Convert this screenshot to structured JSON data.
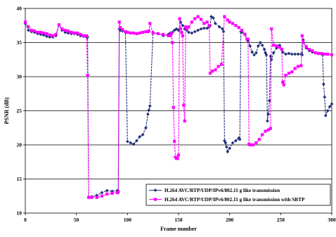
{
  "chart_data": {
    "type": "line",
    "title": "",
    "xlabel": "Frame number",
    "ylabel": "PSNR (dB)",
    "xlim": [
      0,
      300
    ],
    "ylim": [
      10,
      40
    ],
    "xticks": [
      0,
      50,
      100,
      150,
      200,
      250,
      300
    ],
    "yticks": [
      10,
      15,
      20,
      25,
      30,
      35,
      40
    ],
    "xtick_labels": [
      "0",
      "50",
      "100",
      "150",
      "200",
      "250",
      "300"
    ],
    "ytick_labels": [
      "10",
      "15",
      "20",
      "25",
      "30",
      "35",
      "40"
    ],
    "grid": "horizontal",
    "legend_position": "bottom-right",
    "series": [
      {
        "name": "H.264 AVC/RTP/UDP/IPv6/802.11 g like transmission",
        "color": "#1f2f7a",
        "marker": "diamond",
        "x": [
          0,
          3,
          6,
          9,
          12,
          15,
          18,
          21,
          24,
          27,
          30,
          33,
          36,
          39,
          42,
          45,
          48,
          51,
          54,
          57,
          60,
          61,
          62,
          65,
          70,
          75,
          80,
          85,
          90,
          91,
          92,
          93,
          95,
          98,
          100,
          103,
          106,
          109,
          112,
          115,
          118,
          120,
          121,
          122,
          125,
          130,
          135,
          140,
          142,
          144,
          146,
          148,
          150,
          152,
          154,
          156,
          158,
          160,
          163,
          166,
          169,
          172,
          175,
          178,
          180,
          181,
          182,
          184,
          186,
          190,
          193,
          194,
          195,
          196,
          197,
          198,
          200,
          203,
          206,
          209,
          210,
          211,
          212,
          215,
          218,
          220,
          222,
          224,
          226,
          228,
          230,
          232,
          234,
          235,
          236,
          237,
          238,
          239,
          240,
          241,
          243,
          246,
          249,
          252,
          255,
          258,
          261,
          264,
          267,
          270,
          271,
          272,
          275,
          278,
          281,
          284,
          287,
          290,
          291,
          292,
          293,
          294,
          296,
          298,
          300
        ],
        "y": [
          37.8,
          36.8,
          36.6,
          36.5,
          36.3,
          36.2,
          36.1,
          35.9,
          35.8,
          35.8,
          36.0,
          37.6,
          36.8,
          36.5,
          36.4,
          36.3,
          36.3,
          36.2,
          36.0,
          35.9,
          35.8,
          35.8,
          12.4,
          12.4,
          12.6,
          13.0,
          13.3,
          13.2,
          13.3,
          13.2,
          37.0,
          36.8,
          36.7,
          36.5,
          20.5,
          20.3,
          20.1,
          20.6,
          21.2,
          21.5,
          22.5,
          24.5,
          25.1,
          25.7,
          36.5,
          36.3,
          36.0,
          36.2,
          36.4,
          36.5,
          36.8,
          37.0,
          36.8,
          38.0,
          37.5,
          37.0,
          36.8,
          36.5,
          36.4,
          36.6,
          36.8,
          37.0,
          37.1,
          37.1,
          37.3,
          37.5,
          38.8,
          38.6,
          37.8,
          37.3,
          37.0,
          36.6,
          20.6,
          20.3,
          19.7,
          19.0,
          19.5,
          20.3,
          20.6,
          21.0,
          20.8,
          36.6,
          36.5,
          36.2,
          35.2,
          34.5,
          33.6,
          33.2,
          33.5,
          34.5,
          35.0,
          34.6,
          34.0,
          33.5,
          33.2,
          23.5,
          24.5,
          26.5,
          33.0,
          32.5,
          33.5,
          34.2,
          34.6,
          33.6,
          33.3,
          33.4,
          33.3,
          33.3,
          33.3,
          33.3,
          33.2,
          35.4,
          34.2,
          33.8,
          33.6,
          33.5,
          33.4,
          33.3,
          33.3,
          28.9,
          27.0,
          24.3,
          25.0,
          25.6,
          26.0
        ]
      },
      {
        "name": "H.264 AVC/RTP/UDP/IPv6/802.11 g like transmission with SRTP",
        "color": "#ff00ff",
        "marker": "square",
        "x": [
          0,
          3,
          6,
          9,
          12,
          15,
          18,
          21,
          24,
          27,
          30,
          33,
          36,
          39,
          42,
          45,
          48,
          51,
          54,
          57,
          60,
          61,
          62,
          65,
          70,
          75,
          80,
          85,
          90,
          91,
          92,
          93,
          95,
          98,
          100,
          103,
          106,
          109,
          112,
          115,
          118,
          120,
          121,
          122,
          125,
          130,
          135,
          140,
          142,
          143,
          144,
          145,
          146,
          147,
          148,
          149,
          150,
          151,
          152,
          153,
          154,
          155,
          156,
          157,
          158,
          160,
          163,
          166,
          169,
          172,
          175,
          178,
          180,
          181,
          183,
          186,
          189,
          192,
          195,
          198,
          200,
          203,
          206,
          209,
          212,
          215,
          217,
          218,
          219,
          220,
          223,
          226,
          229,
          232,
          235,
          238,
          240,
          241,
          243,
          246,
          249,
          251,
          252,
          253,
          255,
          258,
          261,
          264,
          267,
          270,
          271,
          272,
          275,
          278,
          281,
          284,
          287,
          290,
          293,
          296,
          300
        ],
        "y": [
          38.0,
          37.3,
          36.8,
          36.7,
          36.5,
          36.5,
          36.4,
          36.3,
          36.1,
          36.0,
          36.2,
          37.6,
          37.0,
          36.8,
          36.7,
          36.5,
          36.4,
          36.4,
          36.2,
          36.0,
          36.0,
          30.2,
          12.3,
          12.3,
          12.3,
          12.5,
          12.8,
          12.9,
          13.0,
          13.1,
          38.0,
          37.2,
          36.9,
          36.6,
          36.5,
          36.4,
          36.4,
          36.3,
          36.4,
          36.5,
          36.6,
          36.6,
          36.7,
          37.8,
          36.4,
          36.3,
          36.2,
          36.0,
          36.0,
          36.3,
          35.0,
          25.5,
          20.5,
          18.2,
          18.0,
          18.0,
          18.5,
          38.5,
          37.0,
          36.5,
          36.0,
          25.8,
          23.5,
          37.3,
          37.0,
          37.3,
          38.0,
          38.5,
          38.8,
          38.4,
          37.8,
          38.0,
          37.5,
          30.5,
          30.8,
          31.0,
          31.5,
          31.8,
          38.8,
          38.3,
          38.0,
          37.8,
          37.5,
          37.2,
          36.8,
          36.2,
          35.5,
          35.5,
          20.1,
          20.0,
          20.0,
          20.3,
          20.8,
          21.5,
          22.0,
          22.2,
          22.4,
          37.0,
          34.6,
          34.5,
          34.3,
          34.0,
          29.2,
          28.8,
          30.2,
          30.5,
          30.7,
          31.2,
          31.5,
          31.6,
          36.0,
          35.0,
          34.4,
          34.0,
          33.8,
          33.5,
          33.4,
          33.4,
          33.3,
          33.3,
          33.2
        ]
      }
    ]
  },
  "style": {
    "background": "#ffffff",
    "plot_border": "#000000",
    "grid_color": "#000000"
  }
}
